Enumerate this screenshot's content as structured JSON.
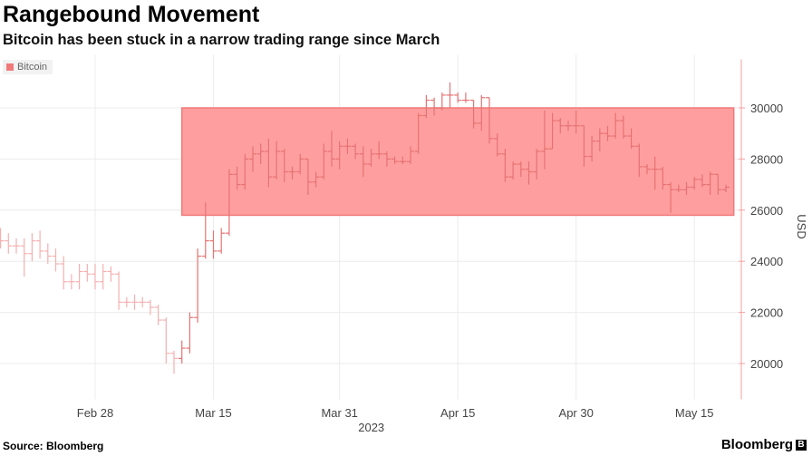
{
  "header": {
    "title": "Rangebound Movement",
    "subtitle": "Bitcoin has been stuck in a narrow trading range since March"
  },
  "footer": {
    "source": "Source: Bloomberg",
    "logo": "Bloomberg"
  },
  "colors": {
    "bar_outside": "#f5b0b0",
    "bar_inside": "#e57373",
    "band_fill": "#ff9e9e",
    "band_border": "#f07a7a",
    "grid": "#ececec",
    "axis": "#f4a0a0"
  },
  "chart_data": {
    "type": "ohlc",
    "title": "Rangebound Movement",
    "subtitle": "Bitcoin has been stuck in a narrow trading range since March",
    "legend": [
      {
        "name": "Bitcoin",
        "color": "#f07a7a"
      }
    ],
    "legend_placement": "top-left",
    "ylabel": "USD",
    "xlabel": "2023",
    "ylim": [
      18600,
      31900
    ],
    "yticks": [
      20000,
      22000,
      24000,
      26000,
      28000,
      30000
    ],
    "xticks": [
      {
        "date": "2023-02-28",
        "label": "Feb 28"
      },
      {
        "date": "2023-03-15",
        "label": "Mar 15"
      },
      {
        "date": "2023-03-31",
        "label": "Mar 31"
      },
      {
        "date": "2023-04-15",
        "label": "Apr 15"
      },
      {
        "date": "2023-04-30",
        "label": "Apr 30"
      },
      {
        "date": "2023-05-15",
        "label": "May 15"
      }
    ],
    "grid": true,
    "start_date": "2023-02-16",
    "highlight_band": {
      "from": "2023-03-11",
      "to": "2023-05-20",
      "low": 25800,
      "high": 30000
    },
    "open": [
      25000,
      24800,
      24600,
      24600,
      24300,
      24800,
      24400,
      24200,
      23900,
      23200,
      23200,
      23600,
      23500,
      23200,
      23600,
      23500,
      22400,
      22400,
      22400,
      22400,
      22200,
      21700,
      20400,
      20200,
      20600,
      21800,
      24200,
      24800,
      24400,
      25100,
      27400,
      27000,
      28000,
      28200,
      28300,
      27300,
      28300,
      27500,
      27500,
      28000,
      27100,
      27300,
      28300,
      28000,
      28500,
      28500,
      28200,
      27800,
      28200,
      28200,
      28000,
      27900,
      27900,
      28300,
      29700,
      30300,
      30000,
      30500,
      30500,
      30300,
      30300,
      29400,
      30400,
      28800,
      28200,
      27300,
      27800,
      27600,
      27500,
      28300,
      28400,
      29500,
      29300,
      29300,
      29300,
      28100,
      28700,
      29000,
      28900,
      29500,
      28900,
      28500,
      27700,
      27600,
      27600,
      27000,
      26800,
      26800,
      26900,
      27200,
      27000,
      27400,
      26800
    ],
    "high": [
      25300,
      25100,
      24900,
      24900,
      25100,
      25200,
      24700,
      24500,
      24200,
      23500,
      23900,
      23900,
      23900,
      23900,
      23800,
      23600,
      22600,
      22700,
      22600,
      22500,
      22300,
      21800,
      20500,
      20900,
      22000,
      24500,
      26300,
      25200,
      25300,
      27600,
      27700,
      28200,
      28500,
      28600,
      28800,
      28700,
      28400,
      27700,
      28200,
      28000,
      27500,
      28600,
      29100,
      28700,
      28800,
      28600,
      28500,
      28400,
      28700,
      28300,
      28100,
      28100,
      28500,
      29800,
      30500,
      30400,
      30600,
      31000,
      30600,
      30600,
      30300,
      30500,
      30400,
      29000,
      28400,
      27900,
      27900,
      27900,
      28400,
      29900,
      29800,
      29600,
      29500,
      29900,
      29300,
      28900,
      29200,
      29300,
      29800,
      29700,
      29200,
      28600,
      27800,
      28100,
      27700,
      27100,
      27000,
      27100,
      27300,
      27400,
      27500,
      27400,
      27000
    ],
    "low": [
      24500,
      24300,
      24300,
      23400,
      24000,
      24100,
      23900,
      23600,
      22900,
      22900,
      22900,
      23200,
      22900,
      22900,
      23200,
      22100,
      22200,
      22100,
      22200,
      21900,
      21500,
      20000,
      19600,
      20000,
      20400,
      21600,
      24100,
      24100,
      24300,
      25000,
      26800,
      26800,
      27500,
      27800,
      26900,
      27200,
      27100,
      27200,
      27400,
      26600,
      26900,
      27200,
      27700,
      27600,
      28200,
      28000,
      27300,
      27700,
      28000,
      27700,
      27800,
      27800,
      27800,
      28200,
      29600,
      29700,
      29900,
      30000,
      30200,
      30200,
      29200,
      29100,
      28600,
      28100,
      27100,
      27200,
      27300,
      27000,
      27200,
      27600,
      28400,
      29000,
      29100,
      29000,
      27700,
      27900,
      28300,
      28700,
      28800,
      28800,
      28400,
      27300,
      27400,
      26800,
      26800,
      25900,
      26700,
      26600,
      26800,
      26900,
      26600,
      26600,
      26700
    ],
    "close": [
      24800,
      24600,
      24600,
      24300,
      24800,
      24400,
      24200,
      23900,
      23200,
      23200,
      23600,
      23500,
      23200,
      23600,
      23500,
      22400,
      22400,
      22400,
      22400,
      22200,
      21700,
      20400,
      20200,
      20600,
      21800,
      24200,
      24800,
      24400,
      25100,
      27400,
      27000,
      28000,
      28200,
      28300,
      27300,
      28300,
      27500,
      27500,
      28000,
      27100,
      27300,
      28300,
      28000,
      28500,
      28500,
      28200,
      27800,
      28200,
      28200,
      28000,
      27900,
      27900,
      28300,
      29700,
      30300,
      30000,
      30500,
      30500,
      30300,
      30300,
      29400,
      30400,
      28800,
      28200,
      27300,
      27800,
      27600,
      27500,
      28300,
      28400,
      29500,
      29300,
      29300,
      29300,
      28100,
      28700,
      29000,
      28900,
      29500,
      28900,
      28500,
      27700,
      27600,
      27600,
      27000,
      26800,
      26800,
      26900,
      27200,
      27000,
      27400,
      26800,
      26900
    ]
  }
}
